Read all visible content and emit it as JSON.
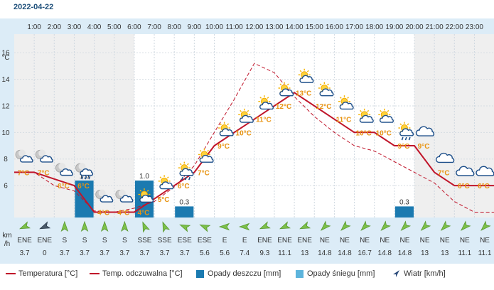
{
  "header": {
    "date": "2022-04-22"
  },
  "chart_data": {
    "type": "line",
    "hours": [
      "1:00",
      "2:00",
      "3:00",
      "4:00",
      "5:00",
      "6:00",
      "7:00",
      "8:00",
      "9:00",
      "10:00",
      "11:00",
      "12:00",
      "13:00",
      "14:00",
      "15:00",
      "16:00",
      "17:00",
      "18:00",
      "19:00",
      "20:00",
      "21:00",
      "22:00",
      "23:00"
    ],
    "y_axis": {
      "unit": "°C",
      "ticks": [
        6,
        8,
        10,
        12,
        14,
        16
      ],
      "ylim": [
        3.6,
        17.4
      ]
    },
    "series": [
      {
        "name": "Temperatura [°C]",
        "color": "#c0152a",
        "x": [
          0,
          1,
          2,
          3,
          4,
          5,
          6,
          7,
          8,
          9,
          10,
          11,
          12,
          13,
          14,
          15,
          16,
          17,
          18,
          19,
          20,
          21,
          22,
          23,
          24
        ],
        "values": [
          7.0,
          7.0,
          6.5,
          6.0,
          4.0,
          4.0,
          4.0,
          5.0,
          6.0,
          7.0,
          9.0,
          10.0,
          11.0,
          12.0,
          13.0,
          12.0,
          11.0,
          10.0,
          10.0,
          9.0,
          9.0,
          7.0,
          6.0,
          6.0,
          6.0
        ]
      },
      {
        "name": "Temp. odczuwalna [°C]",
        "color": "#c0152a",
        "dashed": true,
        "x": [
          0,
          1,
          2,
          3,
          4,
          5,
          6,
          7,
          8,
          9,
          10,
          11,
          12,
          13,
          14,
          15,
          16,
          17,
          18,
          19,
          20,
          21,
          22,
          23,
          24
        ],
        "values": [
          7.0,
          7.0,
          6.0,
          5.6,
          4.1,
          4.0,
          4.3,
          4.8,
          5.9,
          7.5,
          10.0,
          12.5,
          15.2,
          14.5,
          12.7,
          11.2,
          10.0,
          9.0,
          8.6,
          7.8,
          7.0,
          6.2,
          4.8,
          4.0,
          4.0
        ]
      }
    ],
    "icons": [
      {
        "h": 0,
        "t": 7,
        "type": "cloudy-night"
      },
      {
        "h": 1,
        "t": 7,
        "type": "cloudy-night"
      },
      {
        "h": 2,
        "t": 6,
        "type": "cloudy-night"
      },
      {
        "h": 3,
        "t": 6,
        "type": "rain-night"
      },
      {
        "h": 4,
        "t": 4,
        "type": "cloudy-night"
      },
      {
        "h": 5,
        "t": 4,
        "type": "cloudy-night"
      },
      {
        "h": 6,
        "t": 4,
        "type": "sun-cloud"
      },
      {
        "h": 7,
        "t": 5,
        "type": "sun-cloud"
      },
      {
        "h": 8,
        "t": 6,
        "type": "rain-day"
      },
      {
        "h": 9,
        "t": 7,
        "type": "sun-cloud"
      },
      {
        "h": 10,
        "t": 9,
        "type": "sun-cloud"
      },
      {
        "h": 11,
        "t": 10,
        "type": "sun-cloud"
      },
      {
        "h": 12,
        "t": 11,
        "type": "sun-cloud"
      },
      {
        "h": 13,
        "t": 12,
        "type": "sun-cloud"
      },
      {
        "h": 14,
        "t": 13,
        "type": "sun-cloud"
      },
      {
        "h": 15,
        "t": 12,
        "type": "sun-cloud"
      },
      {
        "h": 16,
        "t": 11,
        "type": "sun-cloud"
      },
      {
        "h": 17,
        "t": 10,
        "type": "sun-cloud"
      },
      {
        "h": 18,
        "t": 10,
        "type": "sun-cloud"
      },
      {
        "h": 19,
        "t": 9,
        "type": "rain-day"
      },
      {
        "h": 20,
        "t": 9,
        "type": "cloud"
      },
      {
        "h": 21,
        "t": 7,
        "type": "cloud"
      },
      {
        "h": 22,
        "t": 6,
        "type": "cloud"
      },
      {
        "h": 23,
        "t": 6,
        "type": "cloud"
      }
    ],
    "rain": [
      {
        "h": 3,
        "mm": 1.0,
        "label": "1.0"
      },
      {
        "h": 6,
        "mm": 1.0,
        "label": "1.0"
      },
      {
        "h": 8,
        "mm": 0.3,
        "label": "0.3"
      },
      {
        "h": 19,
        "mm": 0.3,
        "label": "0.3"
      }
    ],
    "rain_scale_max_mm": 1.0,
    "night_hours": [
      0,
      1,
      2,
      3,
      4,
      5,
      20,
      21,
      22,
      23
    ],
    "wind_unit": "km\n/h",
    "wind": [
      {
        "dir": "ENE",
        "speed": "3.7",
        "angle": 247
      },
      {
        "dir": "ENE",
        "speed": "0",
        "angle": 247
      },
      {
        "dir": "S",
        "speed": "3.7",
        "angle": 0
      },
      {
        "dir": "S",
        "speed": "3.7",
        "angle": 0
      },
      {
        "dir": "S",
        "speed": "3.7",
        "angle": 0
      },
      {
        "dir": "S",
        "speed": "3.7",
        "angle": 0
      },
      {
        "dir": "SSE",
        "speed": "3.7",
        "angle": 338
      },
      {
        "dir": "SSE",
        "speed": "3.7",
        "angle": 338
      },
      {
        "dir": "ESE",
        "speed": "3.7",
        "angle": 293
      },
      {
        "dir": "ESE",
        "speed": "5.6",
        "angle": 293
      },
      {
        "dir": "E",
        "speed": "5.6",
        "angle": 270
      },
      {
        "dir": "E",
        "speed": "7.4",
        "angle": 270
      },
      {
        "dir": "ENE",
        "speed": "9.3",
        "angle": 247
      },
      {
        "dir": "ENE",
        "speed": "11.1",
        "angle": 247
      },
      {
        "dir": "ENE",
        "speed": "13",
        "angle": 247
      },
      {
        "dir": "NE",
        "speed": "14.8",
        "angle": 225
      },
      {
        "dir": "NE",
        "speed": "14.8",
        "angle": 225
      },
      {
        "dir": "NE",
        "speed": "16.7",
        "angle": 225
      },
      {
        "dir": "NE",
        "speed": "14.8",
        "angle": 225
      },
      {
        "dir": "NE",
        "speed": "14.8",
        "angle": 225
      },
      {
        "dir": "NE",
        "speed": "13",
        "angle": 225
      },
      {
        "dir": "NE",
        "speed": "13",
        "angle": 225
      },
      {
        "dir": "NE",
        "speed": "11.1",
        "angle": 225
      },
      {
        "dir": "NE",
        "speed": "11.1",
        "angle": 225
      }
    ],
    "legend": [
      {
        "label": "Temperatura [°C]",
        "kind": "line",
        "color": "#c0152a"
      },
      {
        "label": "Temp. odczuwalna [°C]",
        "kind": "line",
        "color": "#c0152a"
      },
      {
        "label": "Opady deszczu [mm]",
        "kind": "box",
        "color": "#1b7ab0"
      },
      {
        "label": "Opady śniegu [mm]",
        "kind": "box",
        "color": "#5db4dc"
      },
      {
        "label": "Wiatr [km/h]",
        "kind": "arrow",
        "color": "#2a4a7a"
      }
    ]
  }
}
